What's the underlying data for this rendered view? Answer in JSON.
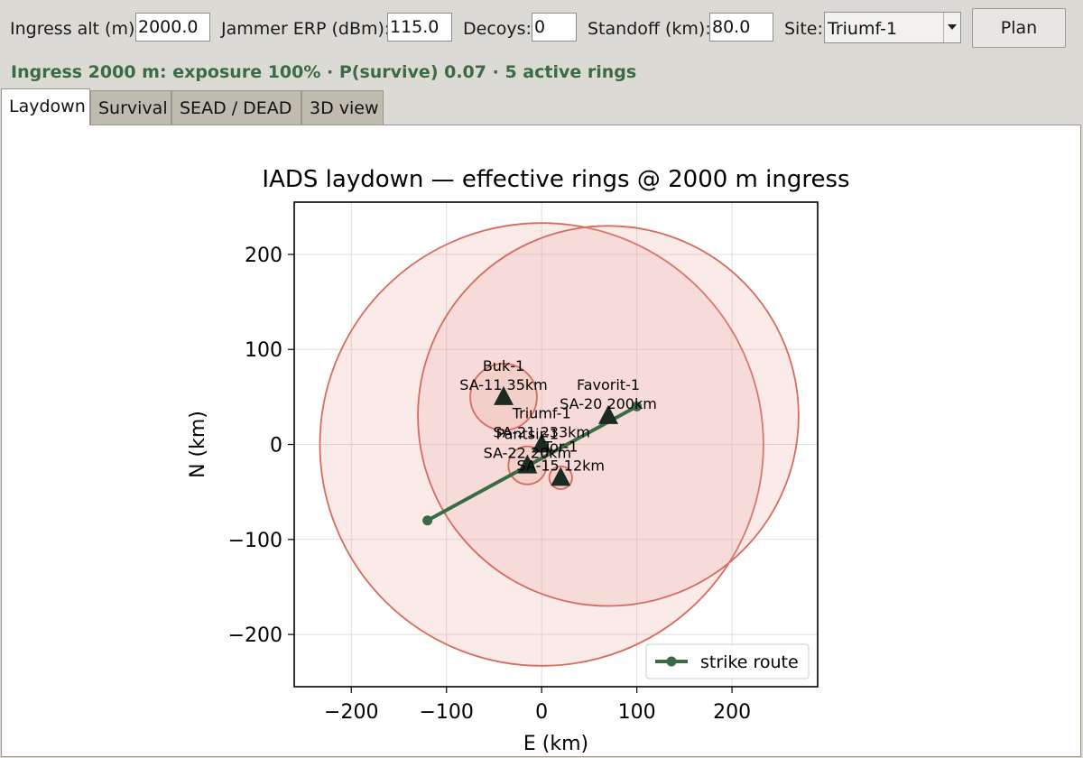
{
  "toolbar": {
    "alt_label": "Ingress alt (m):",
    "alt_value": "2000.0",
    "erp_label": "Jammer ERP (dBm):",
    "erp_value": "115.0",
    "decoys_label": "Decoys:",
    "decoys_value": "0",
    "standoff_label": "Standoff (km):",
    "standoff_value": "80.0",
    "site_label": "Site:",
    "site_value": "Triumf-1",
    "plan_label": "Plan"
  },
  "status_line": "Ingress 2000 m: exposure 100%  ·  P(survive) 0.07  ·  5 active rings",
  "tabs": [
    {
      "label": "Laydown",
      "active": true
    },
    {
      "label": "Survival",
      "active": false
    },
    {
      "label": "SEAD / DEAD",
      "active": false
    },
    {
      "label": "3D view",
      "active": false
    }
  ],
  "colors": {
    "ring_stroke": "#d66b5f",
    "ring_fill": "#e8a49c",
    "route": "#3b6b44",
    "site_marker": "#1c2b22",
    "status_text": "#3b6b44"
  },
  "chart_data": {
    "type": "scatter",
    "title": "IADS laydown — effective rings @ 2000 m ingress",
    "xlabel": "E (km)",
    "ylabel": "N (km)",
    "xlim": [
      -260,
      290
    ],
    "ylim": [
      -255,
      255
    ],
    "xticks": [
      -200,
      -100,
      0,
      100,
      200
    ],
    "yticks": [
      -200,
      -100,
      0,
      100,
      200
    ],
    "xtick_labels": [
      "−200",
      "−100",
      "0",
      "100",
      "200"
    ],
    "ytick_labels": [
      "−200",
      "−100",
      "0",
      "100",
      "200"
    ],
    "grid": true,
    "legend_position": "lower-right",
    "sites": [
      {
        "name": "Triumf-1",
        "type": "SA-21",
        "label": "Triumf-1\nSA-21 233km",
        "x": 0,
        "y": 0,
        "range_km": 233
      },
      {
        "name": "Favorit-1",
        "type": "SA-20",
        "label": "Favorit-1\nSA-20 200km",
        "x": 70,
        "y": 30,
        "range_km": 200
      },
      {
        "name": "Buk-1",
        "type": "SA-11",
        "label": "Buk-1\nSA-11 35km",
        "x": -40,
        "y": 50,
        "range_km": 35
      },
      {
        "name": "Pantsir-1",
        "type": "SA-22",
        "label": "Pantsir-1\nSA-22 20km",
        "x": -15,
        "y": -22,
        "range_km": 20
      },
      {
        "name": "Tor-1",
        "type": "SA-15",
        "label": "Tor-1\nSA-15 12km",
        "x": 20,
        "y": -35,
        "range_km": 12
      }
    ],
    "series": [
      {
        "name": "strike route",
        "x": [
          -120,
          100
        ],
        "y": [
          -80,
          40
        ]
      }
    ]
  }
}
